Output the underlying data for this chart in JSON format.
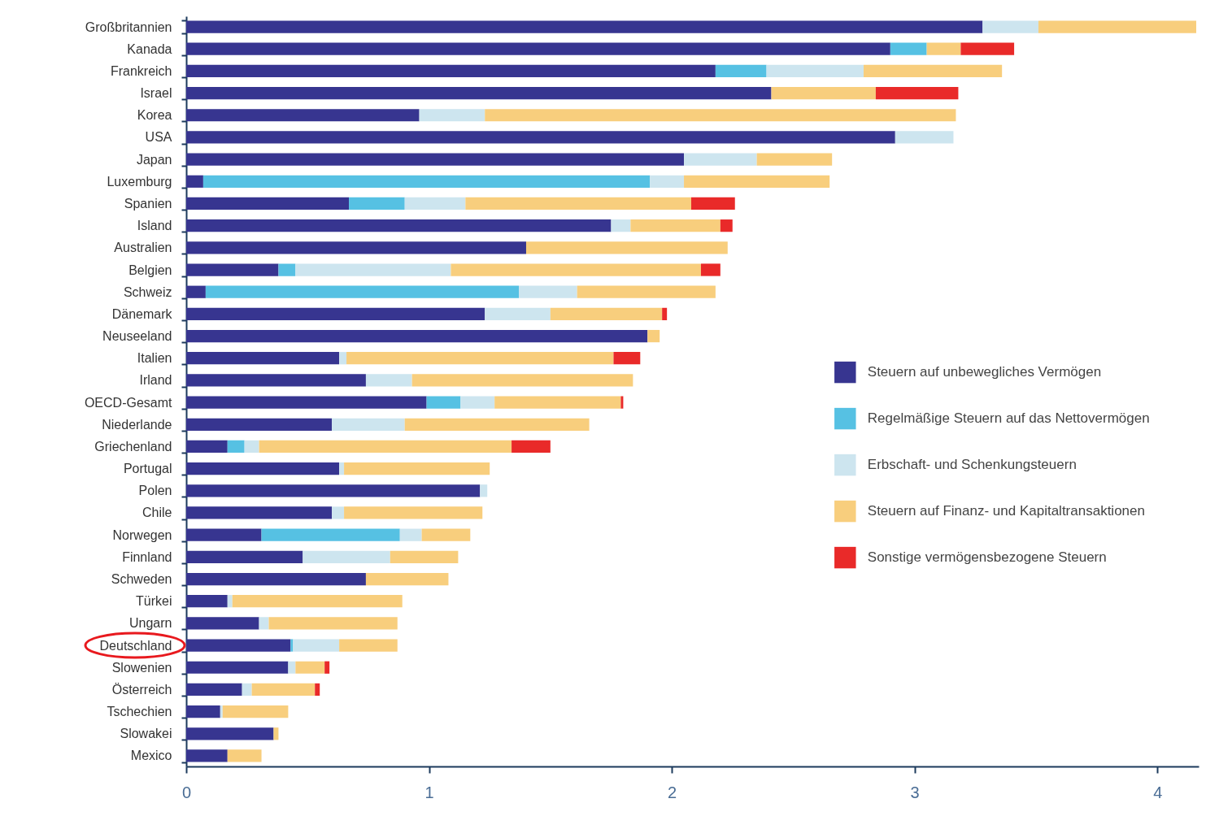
{
  "chart_data": {
    "type": "bar",
    "orientation": "horizontal",
    "stacked": true,
    "categories": [
      "Großbritannien",
      "Kanada",
      "Frankreich",
      "Israel",
      "Korea",
      "USA",
      "Japan",
      "Luxemburg",
      "Spanien",
      "Island",
      "Australien",
      "Belgien",
      "Schweiz",
      "Dänemark",
      "Neuseeland",
      "Italien",
      "Irland",
      "OECD-Gesamt",
      "Niederlande",
      "Griechenland",
      "Portugal",
      "Polen",
      "Chile",
      "Norwegen",
      "Finnland",
      "Schweden",
      "Türkei",
      "Ungarn",
      "Deutschland",
      "Slowenien",
      "Österreich",
      "Tschechien",
      "Slowakei",
      "Mexico"
    ],
    "series": [
      {
        "name": "Steuern auf unbewegliches Vermögen",
        "color": "#373590",
        "values": [
          3.28,
          2.9,
          2.18,
          2.41,
          0.96,
          2.92,
          2.05,
          0.07,
          0.67,
          1.75,
          1.4,
          0.38,
          0.08,
          1.23,
          1.9,
          0.63,
          0.74,
          0.99,
          0.6,
          0.17,
          0.63,
          1.21,
          0.6,
          0.31,
          0.48,
          0.74,
          0.17,
          0.3,
          0.43,
          0.42,
          0.23,
          0.14,
          0.36,
          0.17
        ]
      },
      {
        "name": "Regelmäßige Steuern auf das Nettovermögen",
        "color": "#56c1e3",
        "values": [
          0,
          0.15,
          0.21,
          0,
          0,
          0,
          0,
          1.84,
          0.23,
          0,
          0,
          0.07,
          1.29,
          0,
          0,
          0,
          0,
          0.14,
          0,
          0.07,
          0,
          0,
          0,
          0.57,
          0,
          0,
          0,
          0,
          0.01,
          0,
          0,
          0,
          0,
          0
        ]
      },
      {
        "name": "Erbschaft- und Schenkungsteuern",
        "color": "#cde5ef",
        "values": [
          0.23,
          0,
          0.4,
          0,
          0.27,
          0.24,
          0.3,
          0.14,
          0.25,
          0.08,
          0,
          0.64,
          0.24,
          0.27,
          0,
          0.03,
          0.19,
          0.14,
          0.3,
          0.06,
          0.02,
          0.03,
          0.05,
          0.09,
          0.36,
          0,
          0.02,
          0.04,
          0.19,
          0.03,
          0.04,
          0.01,
          0,
          0
        ]
      },
      {
        "name": "Steuern auf Finanz- und Kapitaltransaktionen",
        "color": "#f8ce7d",
        "values": [
          0.65,
          0.14,
          0.57,
          0.43,
          1.94,
          0,
          0.31,
          0.6,
          0.93,
          0.37,
          0.83,
          1.03,
          0.57,
          0.46,
          0.05,
          1.1,
          0.91,
          0.52,
          0.76,
          1.04,
          0.6,
          0,
          0.57,
          0.2,
          0.28,
          0.34,
          0.7,
          0.53,
          0.24,
          0.12,
          0.26,
          0.27,
          0.02,
          0.14
        ]
      },
      {
        "name": "Sonstige vermögensbezogene Steuern",
        "color": "#e92a29",
        "values": [
          0,
          0.22,
          0,
          0.34,
          0,
          0,
          0,
          0,
          0.18,
          0.05,
          0,
          0.08,
          0,
          0.02,
          0,
          0.11,
          0,
          0.01,
          0,
          0.16,
          0,
          0,
          0,
          0,
          0,
          0,
          0,
          0,
          0,
          0.02,
          0.02,
          0,
          0,
          0
        ]
      }
    ],
    "xlim": [
      0,
      4.17
    ],
    "xticks": [
      0,
      1,
      2,
      3,
      4
    ],
    "legend": "right",
    "grid": false
  }
}
